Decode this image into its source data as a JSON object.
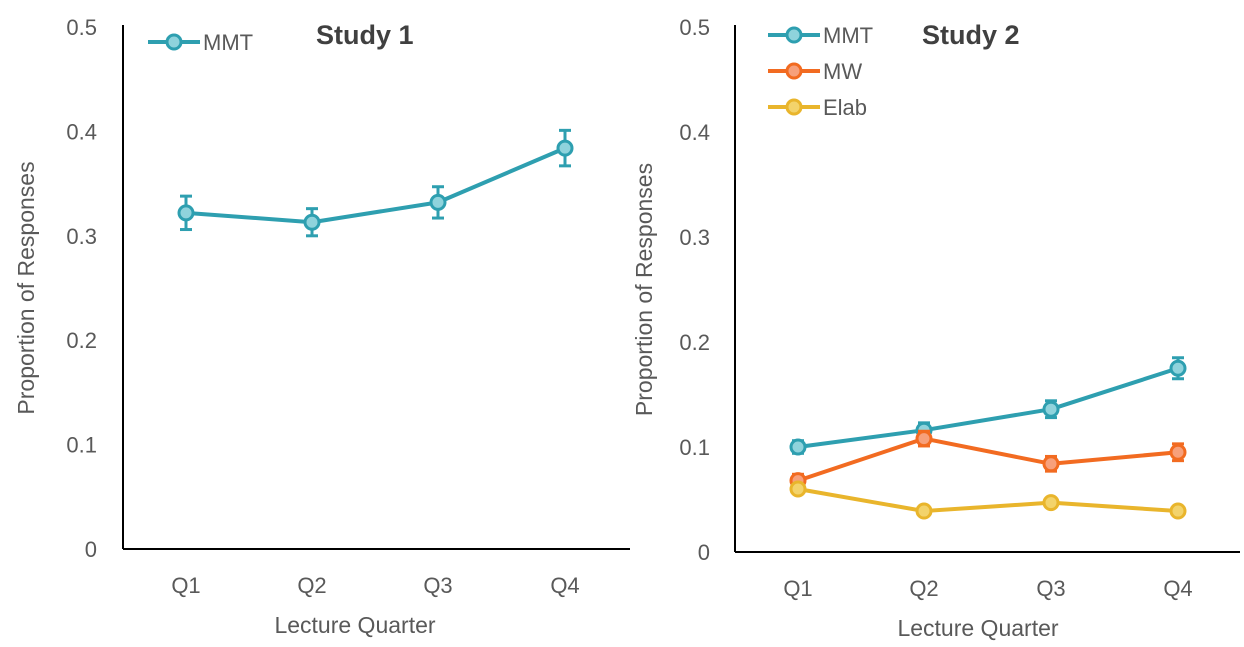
{
  "chart_data": [
    {
      "type": "line",
      "title": "Study 1",
      "xlabel": "Lecture Quarter",
      "ylabel": "Proportion of Responses",
      "categories": [
        "Q1",
        "Q2",
        "Q3",
        "Q4"
      ],
      "ylim": [
        0,
        0.5
      ],
      "yticks": [
        "0",
        "0.1",
        "0.2",
        "0.3",
        "0.4",
        "0.5"
      ],
      "grid": false,
      "legend": "top-left",
      "series": [
        {
          "name": "MMT",
          "color": "#2E9FB0",
          "fill": "#8FD3DC",
          "values": [
            0.322,
            0.313,
            0.332,
            0.384
          ],
          "error": [
            0.016,
            0.013,
            0.015,
            0.017
          ]
        }
      ]
    },
    {
      "type": "line",
      "title": "Study 2",
      "xlabel": "Lecture Quarter",
      "ylabel": "Proportion of Responses",
      "categories": [
        "Q1",
        "Q2",
        "Q3",
        "Q4"
      ],
      "ylim": [
        0,
        0.5
      ],
      "yticks": [
        "0",
        "0.1",
        "0.2",
        "0.3",
        "0.4",
        "0.5"
      ],
      "grid": false,
      "legend": "top-left",
      "series": [
        {
          "name": "MMT",
          "color": "#2E9FB0",
          "fill": "#8FD3DC",
          "values": [
            0.1,
            0.116,
            0.136,
            0.175
          ],
          "error": [
            0.006,
            0.007,
            0.008,
            0.01
          ]
        },
        {
          "name": "MW",
          "color": "#F26B21",
          "fill": "#F7A07B",
          "values": [
            0.068,
            0.108,
            0.084,
            0.095
          ],
          "error": [
            0.006,
            0.007,
            0.007,
            0.008
          ]
        },
        {
          "name": "Elab",
          "color": "#E9B52C",
          "fill": "#F3D36B",
          "values": [
            0.06,
            0.039,
            0.047,
            0.039
          ],
          "error": [
            0.004,
            0.003,
            0.004,
            0.003
          ]
        }
      ]
    }
  ]
}
